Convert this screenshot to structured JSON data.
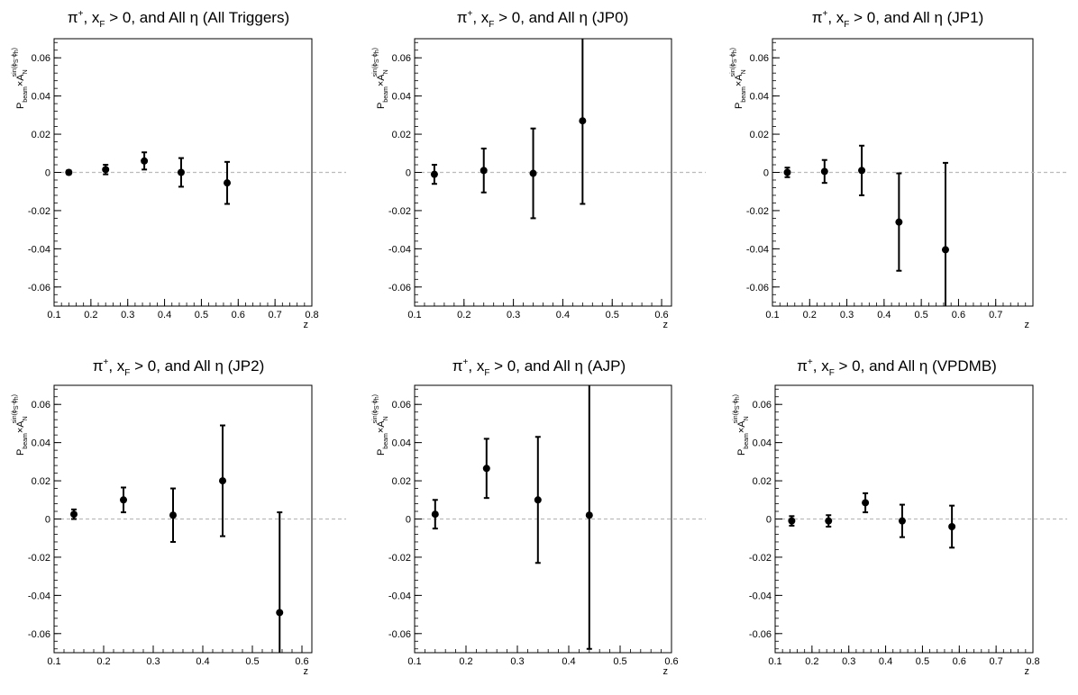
{
  "chart_data": [
    {
      "type": "scatter",
      "title": {
        "pi": "π",
        "sup": "+",
        "mid1": ", x",
        "sub": "F",
        "mid2": " > 0, and All ",
        "eta": "η",
        "tail": " (All Triggers)"
      },
      "xlabel": "z",
      "ylabel": {
        "p": "P",
        "beam": "beam",
        "times": "×A",
        "n": "N",
        "exp": "sin(ϕ",
        "s": "S",
        "minus": "-ϕ",
        "h": "h",
        "close": ")"
      },
      "xlim": [
        0.1,
        0.8
      ],
      "ylim": [
        -0.07,
        0.07
      ],
      "xticks": [
        "0.1",
        "0.2",
        "0.3",
        "0.4",
        "0.5",
        "0.6",
        "0.7",
        "0.8"
      ],
      "yticks": [
        "0.06",
        "0.04",
        "0.02",
        "0",
        "-0.02",
        "-0.04",
        "-0.06"
      ],
      "zero_line": true,
      "points": [
        {
          "x": 0.14,
          "y": 0.0,
          "err": 0.001
        },
        {
          "x": 0.24,
          "y": 0.0015,
          "err": 0.0025
        },
        {
          "x": 0.345,
          "y": 0.006,
          "err": 0.0045
        },
        {
          "x": 0.445,
          "y": 0.0,
          "err": 0.0075
        },
        {
          "x": 0.57,
          "y": -0.0055,
          "err": 0.011
        }
      ]
    },
    {
      "type": "scatter",
      "title": {
        "pi": "π",
        "sup": "+",
        "mid1": ", x",
        "sub": "F",
        "mid2": " > 0, and All ",
        "eta": "η",
        "tail": " (JP0)"
      },
      "xlabel": "z",
      "ylabel": {
        "p": "P",
        "beam": "beam",
        "times": "×A",
        "n": "N",
        "exp": "sin(ϕ",
        "s": "S",
        "minus": "-ϕ",
        "h": "h",
        "close": ")"
      },
      "xlim": [
        0.1,
        0.62
      ],
      "ylim": [
        -0.07,
        0.07
      ],
      "xticks": [
        "0.1",
        "0.2",
        "0.3",
        "0.4",
        "0.5",
        "0.6"
      ],
      "yticks": [
        "0.06",
        "0.04",
        "0.02",
        "0",
        "-0.02",
        "-0.04",
        "-0.06"
      ],
      "zero_line": true,
      "points": [
        {
          "x": 0.14,
          "y": -0.001,
          "err": 0.005
        },
        {
          "x": 0.24,
          "y": 0.001,
          "err": 0.0115
        },
        {
          "x": 0.34,
          "y": -0.0005,
          "err": 0.0235
        },
        {
          "x": 0.44,
          "y": 0.027,
          "err": 0.0435
        }
      ]
    },
    {
      "type": "scatter",
      "title": {
        "pi": "π",
        "sup": "+",
        "mid1": ", x",
        "sub": "F",
        "mid2": " > 0, and All ",
        "eta": "η",
        "tail": " (JP1)"
      },
      "xlabel": "z",
      "ylabel": {
        "p": "P",
        "beam": "beam",
        "times": "×A",
        "n": "N",
        "exp": "sin(ϕ",
        "s": "S",
        "minus": "-ϕ",
        "h": "h",
        "close": ")"
      },
      "xlim": [
        0.1,
        0.8
      ],
      "ylim": [
        -0.07,
        0.07
      ],
      "xticks": [
        "0.1",
        "0.2",
        "0.3",
        "0.4",
        "0.5",
        "0.6",
        "0.7"
      ],
      "yticks": [
        "0.06",
        "0.04",
        "0.02",
        "0",
        "-0.02",
        "-0.04",
        "-0.06"
      ],
      "zero_line": true,
      "points": [
        {
          "x": 0.14,
          "y": 0.0,
          "err": 0.0025
        },
        {
          "x": 0.24,
          "y": 0.0005,
          "err": 0.006
        },
        {
          "x": 0.34,
          "y": 0.001,
          "err": 0.013
        },
        {
          "x": 0.44,
          "y": -0.026,
          "err": 0.0255
        },
        {
          "x": 0.565,
          "y": -0.0405,
          "err": 0.0455
        }
      ]
    },
    {
      "type": "scatter",
      "title": {
        "pi": "π",
        "sup": "+",
        "mid1": ", x",
        "sub": "F",
        "mid2": " > 0, and All ",
        "eta": "η",
        "tail": " (JP2)"
      },
      "xlabel": "z",
      "ylabel": {
        "p": "P",
        "beam": "beam",
        "times": "×A",
        "n": "N",
        "exp": "sin(ϕ",
        "s": "S",
        "minus": "-ϕ",
        "h": "h",
        "close": ")"
      },
      "xlim": [
        0.1,
        0.62
      ],
      "ylim": [
        -0.07,
        0.07
      ],
      "xticks": [
        "0.1",
        "0.2",
        "0.3",
        "0.4",
        "0.5",
        "0.6"
      ],
      "yticks": [
        "0.06",
        "0.04",
        "0.02",
        "0",
        "-0.02",
        "-0.04",
        "-0.06"
      ],
      "zero_line": true,
      "points": [
        {
          "x": 0.14,
          "y": 0.0025,
          "err": 0.0025
        },
        {
          "x": 0.24,
          "y": 0.01,
          "err": 0.0065
        },
        {
          "x": 0.34,
          "y": 0.002,
          "err": 0.014
        },
        {
          "x": 0.44,
          "y": 0.02,
          "err": 0.029
        },
        {
          "x": 0.555,
          "y": -0.049,
          "err": 0.0525
        }
      ]
    },
    {
      "type": "scatter",
      "title": {
        "pi": "π",
        "sup": "+",
        "mid1": ", x",
        "sub": "F",
        "mid2": " > 0, and All ",
        "eta": "η",
        "tail": " (AJP)"
      },
      "xlabel": "z",
      "ylabel": {
        "p": "P",
        "beam": "beam",
        "times": "×A",
        "n": "N",
        "exp": "sin(ϕ",
        "s": "S",
        "minus": "-ϕ",
        "h": "h",
        "close": ")"
      },
      "xlim": [
        0.1,
        0.6
      ],
      "ylim": [
        -0.07,
        0.07
      ],
      "xticks": [
        "0.1",
        "0.2",
        "0.3",
        "0.4",
        "0.5",
        "0.6"
      ],
      "yticks": [
        "0.06",
        "0.04",
        "0.02",
        "0",
        "-0.02",
        "-0.04",
        "-0.06"
      ],
      "zero_line": true,
      "points": [
        {
          "x": 0.14,
          "y": 0.0025,
          "err": 0.0075
        },
        {
          "x": 0.24,
          "y": 0.0265,
          "err": 0.0155
        },
        {
          "x": 0.34,
          "y": 0.01,
          "err": 0.033
        },
        {
          "x": 0.44,
          "y": 0.002,
          "err": 0.07
        }
      ]
    },
    {
      "type": "scatter",
      "title": {
        "pi": "π",
        "sup": "+",
        "mid1": ", x",
        "sub": "F",
        "mid2": " > 0, and All ",
        "eta": "η",
        "tail": " (VPDMB)"
      },
      "xlabel": "z",
      "ylabel": {
        "p": "P",
        "beam": "beam",
        "times": "×A",
        "n": "N",
        "exp": "sin(ϕ",
        "s": "S",
        "minus": "-ϕ",
        "h": "h",
        "close": ")"
      },
      "xlim": [
        0.1,
        0.8
      ],
      "ylim": [
        -0.07,
        0.07
      ],
      "xticks": [
        "0.1",
        "0.2",
        "0.3",
        "0.4",
        "0.5",
        "0.6",
        "0.7",
        "0.8"
      ],
      "yticks": [
        "0.06",
        "0.04",
        "0.02",
        "0",
        "-0.02",
        "-0.04",
        "-0.06"
      ],
      "zero_line": true,
      "points": [
        {
          "x": 0.145,
          "y": -0.001,
          "err": 0.0025
        },
        {
          "x": 0.245,
          "y": -0.001,
          "err": 0.003
        },
        {
          "x": 0.345,
          "y": 0.0085,
          "err": 0.005
        },
        {
          "x": 0.445,
          "y": -0.001,
          "err": 0.0085
        },
        {
          "x": 0.58,
          "y": -0.004,
          "err": 0.011
        }
      ]
    }
  ]
}
